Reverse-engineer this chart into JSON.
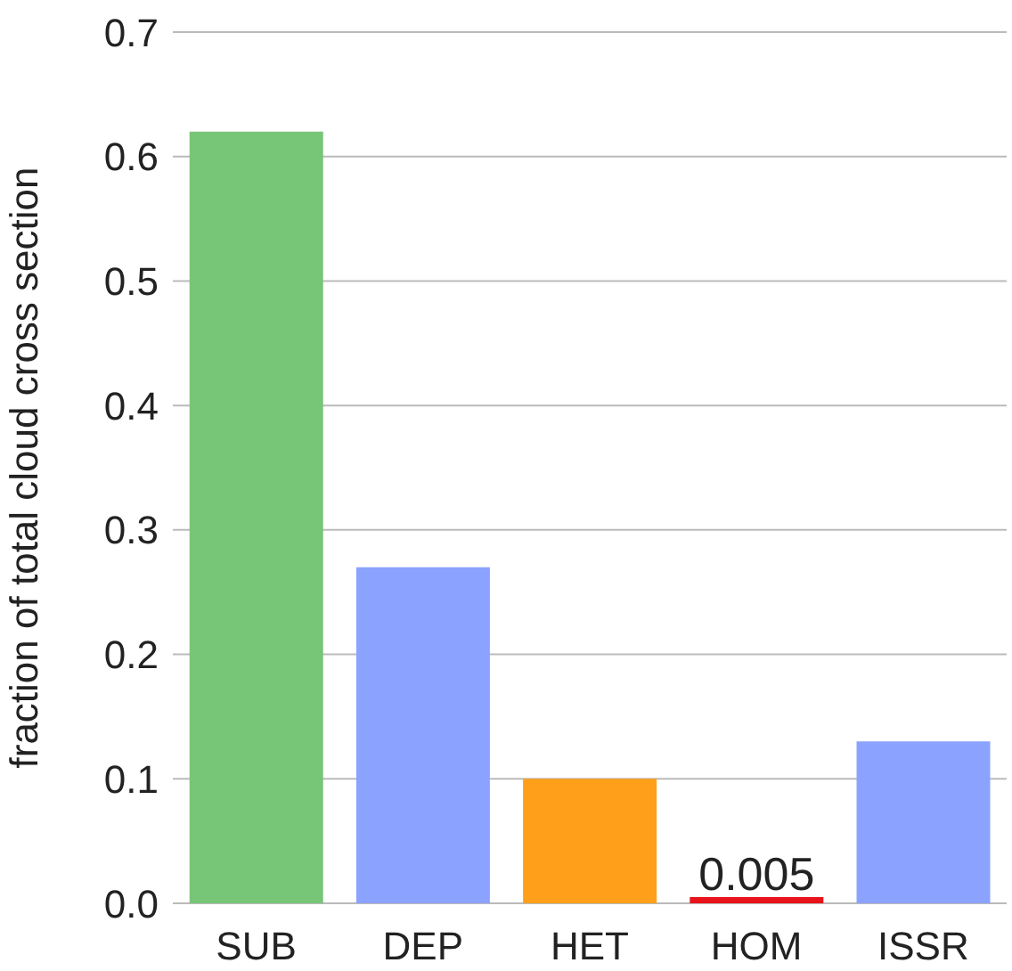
{
  "chart_data": {
    "type": "bar",
    "ylabel": "fraction of total cloud cross section",
    "categories": [
      "SUB",
      "DEP",
      "HET",
      "HOM",
      "ISSR"
    ],
    "values": [
      0.62,
      0.27,
      0.1,
      0.005,
      0.13
    ],
    "colors": [
      "#77c577",
      "#8ca2ff",
      "#ff9f1a",
      "#e8131b",
      "#8ca2ff"
    ],
    "value_labels": [
      null,
      null,
      null,
      "0.005",
      null
    ],
    "ylim": [
      0,
      0.7
    ],
    "yticks": [
      {
        "value": 0,
        "label": "0.0"
      },
      0.1,
      0.2,
      0.3,
      0.4,
      0.5,
      0.6,
      0.7
    ],
    "grid": "y"
  }
}
